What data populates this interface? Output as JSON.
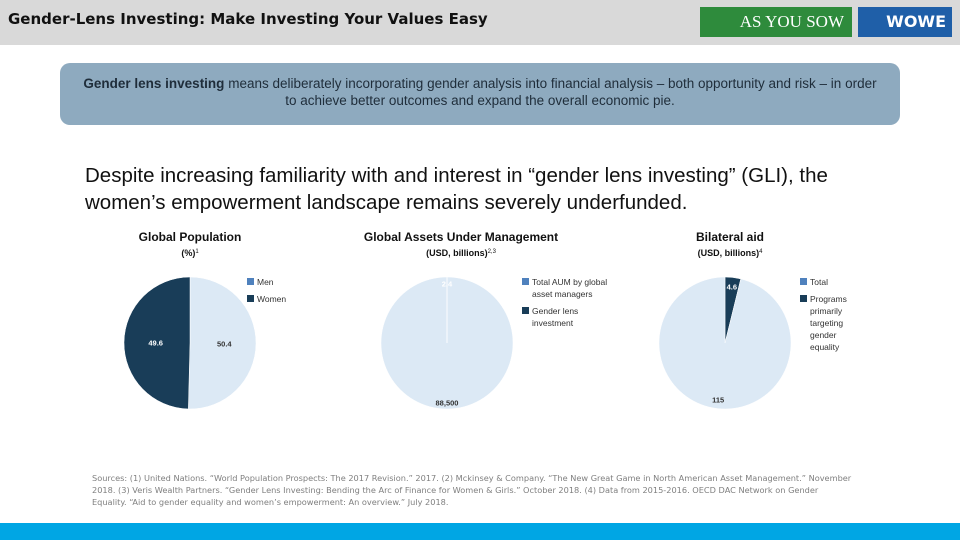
{
  "header": {
    "title": "Gender-Lens Investing: Make Investing Your Values Easy",
    "logo_1": "AS YOU SOW",
    "logo_2": "WOWE"
  },
  "definition": {
    "term": "Gender lens investing",
    "text": "means deliberately incorporating gender analysis into financial analysis – both opportunity and risk – in order to achieve better outcomes and expand the overall economic pie."
  },
  "headline": "Despite increasing familiarity with and interest in “gender lens investing” (GLI), the women’s empowerment landscape remains severely underfunded.",
  "chart_data": [
    {
      "type": "pie",
      "title": "Global Population",
      "subtitle": "(%)",
      "subtitle_note": "1",
      "categories": [
        "Men",
        "Women"
      ],
      "values": [
        50.4,
        49.6
      ],
      "colors": [
        "#dce9f5",
        "#193d58"
      ],
      "legend_colors": [
        "#4f81bd",
        "#193d58"
      ]
    },
    {
      "type": "pie",
      "title": "Global Assets Under Management",
      "subtitle": "(USD, billions)",
      "subtitle_note": "2,3",
      "categories": [
        "Total AUM by global asset managers",
        "Gender lens investment"
      ],
      "values": [
        88500,
        2.4
      ],
      "value_labels": [
        "88,500",
        "2.4"
      ],
      "colors": [
        "#dce9f5",
        "#193d58"
      ],
      "legend_colors": [
        "#4f81bd",
        "#193d58"
      ]
    },
    {
      "type": "pie",
      "title": "Bilateral aid",
      "subtitle": "(USD, billions)",
      "subtitle_note": "4",
      "categories": [
        "Total",
        "Programs primarily targeting gender equality"
      ],
      "values": [
        115,
        4.6
      ],
      "colors": [
        "#dce9f5",
        "#193d58"
      ],
      "legend_colors": [
        "#4f81bd",
        "#193d58"
      ]
    }
  ],
  "sources": "Sources: (1) United Nations. “World Population Prospects: The 2017 Revision.” 2017. (2) Mckinsey & Company. “The New Great Game in North American Asset Management.” November 2018. (3) Veris Wealth Partners. “Gender Lens Investing: Bending the Arc of Finance for Women & Girls.” October 2018. (4) Data from 2015-2016. OECD DAC Network on Gender Equality. “Aid to gender equality and women’s empowerment: An overview.” July 2018."
}
